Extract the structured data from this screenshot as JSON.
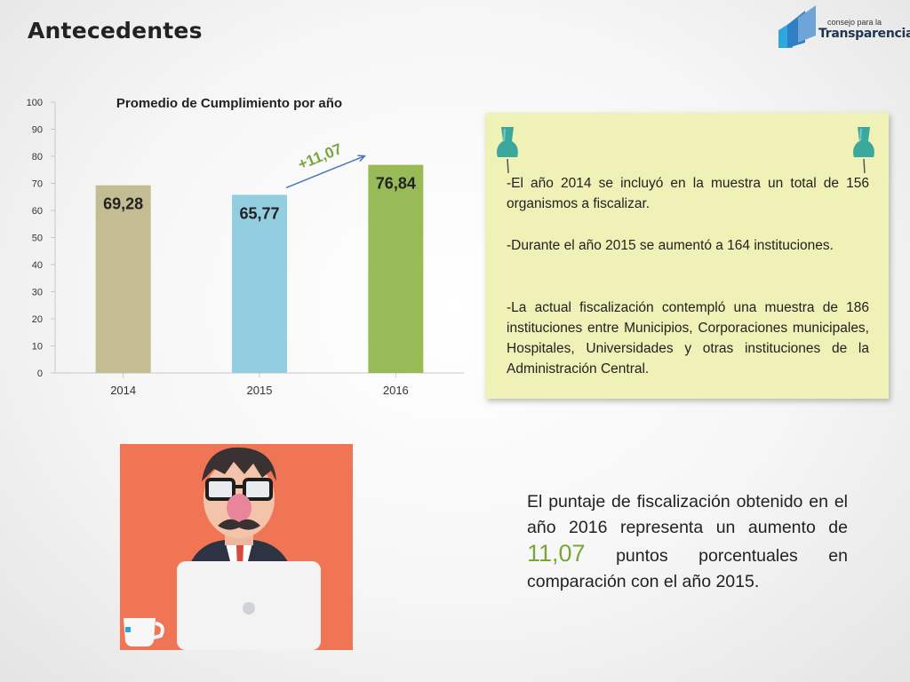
{
  "title": "Antecedentes",
  "logo": {
    "small": "consejo para la",
    "big": "Transparencia"
  },
  "chart_data": {
    "type": "bar",
    "title": "Promedio de Cumplimiento por año",
    "categories": [
      "2014",
      "2015",
      "2016"
    ],
    "values": [
      69.28,
      65.77,
      76.84
    ],
    "value_labels": [
      "69,28",
      "65,77",
      "76,84"
    ],
    "colors": [
      "#c4bc92",
      "#92cde0",
      "#98bb58"
    ],
    "ylim": [
      0,
      100
    ],
    "yticks": [
      "0",
      "10",
      "20",
      "30",
      "40",
      "50",
      "60",
      "70",
      "80",
      "90",
      "100"
    ],
    "annotation": {
      "text": "+11,07",
      "color": "#78a63a"
    },
    "xlabel": "",
    "ylabel": "",
    "grid": false
  },
  "note": {
    "p1": "-El año 2014 se incluyó en la muestra un total de 156 organismos a fiscalizar.",
    "p2": "-Durante el año 2015 se aumentó a 164 instituciones.",
    "p3": "-La actual fiscalización contempló una muestra de 186 instituciones entre Municipios, Corporaciones municipales, Hospitales, Universidades y otras instituciones de la Administración Central."
  },
  "bottom": {
    "before": "El puntaje de fiscalización obtenido en el año 2016 representa un aumento de ",
    "highlight": "11,07",
    "after": " puntos porcentuales en comparación con el año 2015."
  },
  "colors": {
    "pin": "#3aa89c",
    "note_bg": "#f0f1b6",
    "illus_bg": "#f07555"
  }
}
